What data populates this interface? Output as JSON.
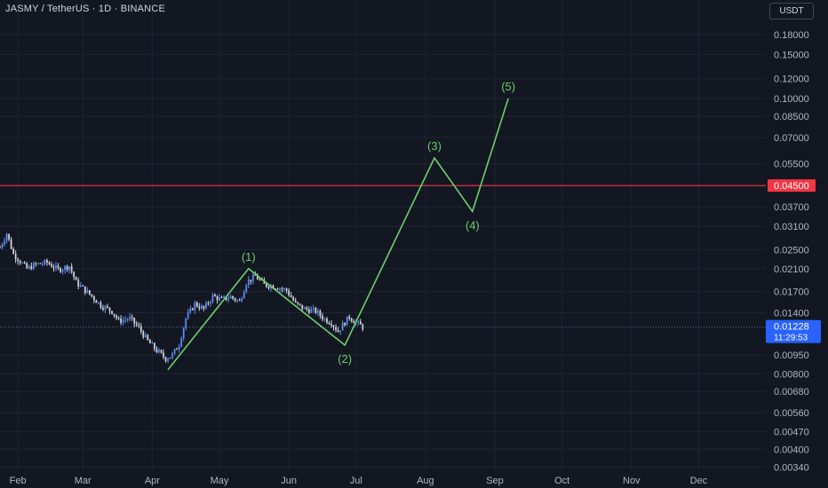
{
  "header": {
    "symbol_title": "JASMY / TetherUS · 1D · BINANCE",
    "currency": "USDT"
  },
  "colors": {
    "background": "#131722",
    "grid": "#1f2433",
    "up_candle": "#5b8def",
    "down_candle": "#d1d4dc",
    "wave_line": "#6ccf6c",
    "resistance_line": "#f23645",
    "current_price_badge": "#2962ff"
  },
  "chart_data": {
    "type": "candlestick",
    "scale": "log",
    "ylim": [
      0.0033,
      0.21
    ],
    "x_range": [
      "2024-01-24",
      "2024-12-31"
    ],
    "x_ticks": [
      {
        "date": "2024-02-01",
        "label": "Feb"
      },
      {
        "date": "2024-03-01",
        "label": "Mar"
      },
      {
        "date": "2024-04-01",
        "label": "Apr"
      },
      {
        "date": "2024-05-01",
        "label": "May"
      },
      {
        "date": "2024-06-01",
        "label": "Jun"
      },
      {
        "date": "2024-07-01",
        "label": "Jul"
      },
      {
        "date": "2024-08-01",
        "label": "Aug"
      },
      {
        "date": "2024-09-01",
        "label": "Sep"
      },
      {
        "date": "2024-10-01",
        "label": "Oct"
      },
      {
        "date": "2024-11-01",
        "label": "Nov"
      },
      {
        "date": "2024-12-01",
        "label": "Dec"
      }
    ],
    "y_ticks": [
      {
        "value": 0.18,
        "label": "0.18000"
      },
      {
        "value": 0.15,
        "label": "0.15000"
      },
      {
        "value": 0.12,
        "label": "0.12000"
      },
      {
        "value": 0.1,
        "label": "0.10000"
      },
      {
        "value": 0.085,
        "label": "0.08500"
      },
      {
        "value": 0.07,
        "label": "0.07000"
      },
      {
        "value": 0.055,
        "label": "0.05500"
      },
      {
        "value": 0.037,
        "label": "0.03700"
      },
      {
        "value": 0.031,
        "label": "0.03100"
      },
      {
        "value": 0.025,
        "label": "0.02500"
      },
      {
        "value": 0.021,
        "label": "0.02100"
      },
      {
        "value": 0.017,
        "label": "0.01700"
      },
      {
        "value": 0.014,
        "label": "0.01400"
      },
      {
        "value": 0.0095,
        "label": "0.00950"
      },
      {
        "value": 0.008,
        "label": "0.00800"
      },
      {
        "value": 0.0068,
        "label": "0.00680"
      },
      {
        "value": 0.0056,
        "label": "0.00560"
      },
      {
        "value": 0.0047,
        "label": "0.00470"
      },
      {
        "value": 0.004,
        "label": "0.00400"
      },
      {
        "value": 0.0034,
        "label": "0.00340"
      }
    ],
    "close_path": [
      [
        "2024-01-24",
        0.0255
      ],
      [
        "2024-01-27",
        0.029
      ],
      [
        "2024-01-30",
        0.024
      ],
      [
        "2024-02-02",
        0.0225
      ],
      [
        "2024-02-05",
        0.021
      ],
      [
        "2024-02-09",
        0.0218
      ],
      [
        "2024-02-14",
        0.0222
      ],
      [
        "2024-02-19",
        0.0208
      ],
      [
        "2024-02-24",
        0.0215
      ],
      [
        "2024-02-27",
        0.0185
      ],
      [
        "2024-03-02",
        0.0172
      ],
      [
        "2024-03-05",
        0.0163
      ],
      [
        "2024-03-09",
        0.015
      ],
      [
        "2024-03-14",
        0.0142
      ],
      [
        "2024-03-17",
        0.013
      ],
      [
        "2024-03-22",
        0.0133
      ],
      [
        "2024-03-26",
        0.0122
      ],
      [
        "2024-03-30",
        0.0108
      ],
      [
        "2024-04-03",
        0.0099
      ],
      [
        "2024-04-07",
        0.0092
      ],
      [
        "2024-04-10",
        0.0095
      ],
      [
        "2024-04-13",
        0.0105
      ],
      [
        "2024-04-16",
        0.0133
      ],
      [
        "2024-04-20",
        0.0152
      ],
      [
        "2024-04-24",
        0.0145
      ],
      [
        "2024-04-28",
        0.0163
      ],
      [
        "2024-05-02",
        0.0158
      ],
      [
        "2024-05-06",
        0.0162
      ],
      [
        "2024-05-10",
        0.0155
      ],
      [
        "2024-05-13",
        0.0185
      ],
      [
        "2024-05-17",
        0.0196
      ],
      [
        "2024-05-21",
        0.0181
      ],
      [
        "2024-05-26",
        0.0178
      ],
      [
        "2024-05-31",
        0.0172
      ],
      [
        "2024-06-04",
        0.0152
      ],
      [
        "2024-06-08",
        0.0145
      ],
      [
        "2024-06-13",
        0.0142
      ],
      [
        "2024-06-17",
        0.0132
      ],
      [
        "2024-06-20",
        0.0128
      ],
      [
        "2024-06-23",
        0.0118
      ],
      [
        "2024-06-25",
        0.0125
      ],
      [
        "2024-06-28",
        0.0135
      ],
      [
        "2024-07-01",
        0.0128
      ],
      [
        "2024-07-04",
        0.01228
      ]
    ],
    "volatility": 0.035,
    "wave_points": [
      {
        "date": "2024-04-08",
        "value": 0.0083,
        "label": ""
      },
      {
        "date": "2024-05-14",
        "value": 0.021,
        "label": "(1)"
      },
      {
        "date": "2024-06-26",
        "value": 0.0104,
        "label": "(2)"
      },
      {
        "date": "2024-08-05",
        "value": 0.058,
        "label": "(3)"
      },
      {
        "date": "2024-08-22",
        "value": 0.0355,
        "label": "(4)"
      },
      {
        "date": "2024-09-07",
        "value": 0.1,
        "label": "(5)"
      }
    ],
    "resistance": {
      "value": 0.045,
      "label": "0.04500"
    },
    "current_price": {
      "value": 0.01228,
      "label": "0.01228",
      "countdown": "11:29:53"
    },
    "grid": true
  }
}
